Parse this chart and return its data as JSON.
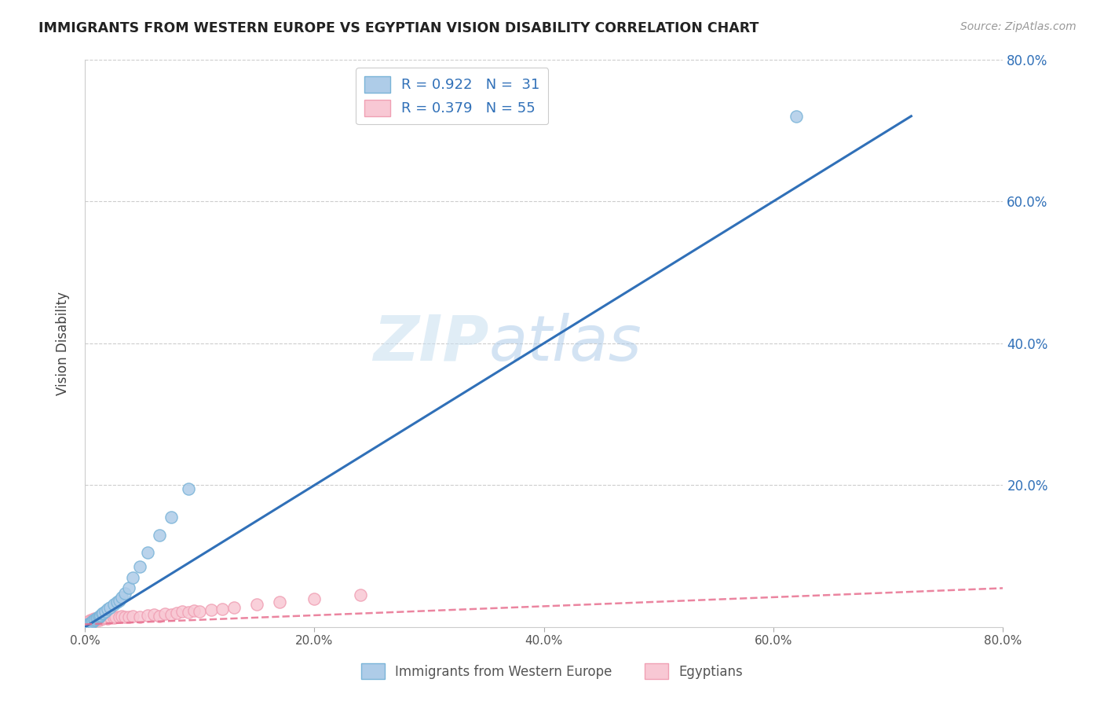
{
  "title": "IMMIGRANTS FROM WESTERN EUROPE VS EGYPTIAN VISION DISABILITY CORRELATION CHART",
  "source_text": "Source: ZipAtlas.com",
  "ylabel": "Vision Disability",
  "xlim": [
    0.0,
    0.8
  ],
  "ylim": [
    0.0,
    0.8
  ],
  "x_tick_labels": [
    "0.0%",
    "20.0%",
    "40.0%",
    "60.0%",
    "80.0%"
  ],
  "x_tick_vals": [
    0.0,
    0.2,
    0.4,
    0.6,
    0.8
  ],
  "y_tick_labels": [
    "20.0%",
    "40.0%",
    "60.0%",
    "80.0%"
  ],
  "y_tick_vals": [
    0.2,
    0.4,
    0.6,
    0.8
  ],
  "watermark": "ZIPatlas",
  "blue_color": "#7ab4d8",
  "blue_fill": "#aecce8",
  "pink_color": "#f0a0b4",
  "pink_fill": "#f8c8d4",
  "blue_line_color": "#3070b8",
  "pink_line_color": "#e87090",
  "grid_color": "#c8c8c8",
  "background_color": "#ffffff",
  "blue_scatter_x": [
    0.002,
    0.003,
    0.004,
    0.005,
    0.006,
    0.007,
    0.008,
    0.009,
    0.01,
    0.011,
    0.012,
    0.013,
    0.014,
    0.015,
    0.016,
    0.018,
    0.02,
    0.022,
    0.025,
    0.028,
    0.03,
    0.032,
    0.035,
    0.038,
    0.042,
    0.048,
    0.055,
    0.065,
    0.075,
    0.09,
    0.62
  ],
  "blue_scatter_y": [
    0.003,
    0.004,
    0.005,
    0.006,
    0.007,
    0.009,
    0.01,
    0.011,
    0.012,
    0.013,
    0.015,
    0.016,
    0.017,
    0.019,
    0.02,
    0.022,
    0.025,
    0.028,
    0.032,
    0.035,
    0.038,
    0.042,
    0.048,
    0.055,
    0.07,
    0.085,
    0.105,
    0.13,
    0.155,
    0.195,
    0.72
  ],
  "pink_scatter_x": [
    0.001,
    0.002,
    0.002,
    0.003,
    0.003,
    0.004,
    0.004,
    0.005,
    0.005,
    0.006,
    0.006,
    0.007,
    0.007,
    0.008,
    0.008,
    0.009,
    0.009,
    0.01,
    0.01,
    0.011,
    0.012,
    0.012,
    0.013,
    0.014,
    0.015,
    0.016,
    0.017,
    0.018,
    0.02,
    0.022,
    0.025,
    0.027,
    0.03,
    0.032,
    0.035,
    0.038,
    0.042,
    0.048,
    0.055,
    0.06,
    0.065,
    0.07,
    0.075,
    0.08,
    0.085,
    0.09,
    0.095,
    0.1,
    0.11,
    0.12,
    0.13,
    0.15,
    0.17,
    0.2,
    0.24
  ],
  "pink_scatter_y": [
    0.004,
    0.006,
    0.007,
    0.005,
    0.008,
    0.006,
    0.009,
    0.007,
    0.01,
    0.008,
    0.009,
    0.01,
    0.011,
    0.009,
    0.012,
    0.01,
    0.011,
    0.01,
    0.012,
    0.011,
    0.01,
    0.013,
    0.012,
    0.011,
    0.013,
    0.012,
    0.014,
    0.013,
    0.012,
    0.014,
    0.013,
    0.015,
    0.014,
    0.016,
    0.015,
    0.014,
    0.016,
    0.015,
    0.017,
    0.018,
    0.016,
    0.019,
    0.018,
    0.02,
    0.022,
    0.021,
    0.023,
    0.022,
    0.024,
    0.026,
    0.028,
    0.032,
    0.036,
    0.04,
    0.045
  ],
  "blue_line_x": [
    0.0,
    0.72
  ],
  "blue_line_y": [
    0.0,
    0.72
  ],
  "pink_line_x": [
    0.0,
    0.8
  ],
  "pink_line_y": [
    0.004,
    0.055
  ]
}
